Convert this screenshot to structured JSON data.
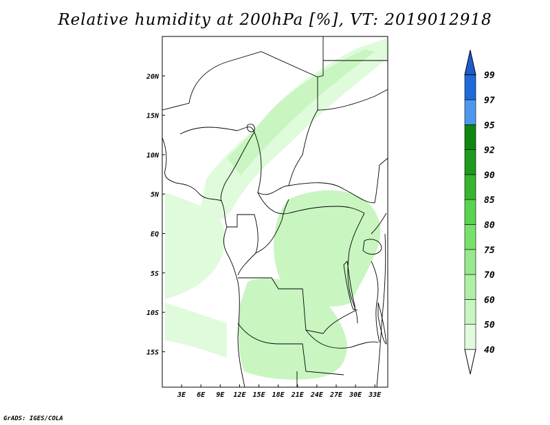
{
  "title": "Relative humidity at 200hPa [%], VT: 2019012918",
  "credit": "GrADS: IGES/COLA",
  "map": {
    "lon_range": [
      0,
      35
    ],
    "lat_range": [
      -19.5,
      25
    ],
    "projection": "lat-lon",
    "x_ticks": [
      {
        "value": 3,
        "label": "3E"
      },
      {
        "value": 6,
        "label": "6E"
      },
      {
        "value": 9,
        "label": "9E"
      },
      {
        "value": 12,
        "label": "12E"
      },
      {
        "value": 15,
        "label": "15E"
      },
      {
        "value": 18,
        "label": "18E"
      },
      {
        "value": 21,
        "label": "21E"
      },
      {
        "value": 24,
        "label": "24E"
      },
      {
        "value": 27,
        "label": "27E"
      },
      {
        "value": 30,
        "label": "30E"
      },
      {
        "value": 33,
        "label": "33E"
      }
    ],
    "y_ticks": [
      {
        "value": 20,
        "label": "20N"
      },
      {
        "value": 15,
        "label": "15N"
      },
      {
        "value": 10,
        "label": "10N"
      },
      {
        "value": 5,
        "label": "5N"
      },
      {
        "value": 0,
        "label": "EQ"
      },
      {
        "value": -5,
        "label": "5S"
      },
      {
        "value": -10,
        "label": "10S"
      },
      {
        "value": -15,
        "label": "15S"
      }
    ]
  },
  "colorbar": {
    "levels": [
      {
        "label": "40",
        "color": "#f0fff0"
      },
      {
        "label": "50",
        "color": "#e0fbdc"
      },
      {
        "label": "60",
        "color": "#c8f5c0"
      },
      {
        "label": "70",
        "color": "#b0efa6"
      },
      {
        "label": "75",
        "color": "#96e98c"
      },
      {
        "label": "80",
        "color": "#78e16c"
      },
      {
        "label": "85",
        "color": "#5ad44e"
      },
      {
        "label": "90",
        "color": "#36b530"
      },
      {
        "label": "92",
        "color": "#1e9a1c"
      },
      {
        "label": "95",
        "color": "#0f870f"
      },
      {
        "label": "97",
        "color": "#4f97ec"
      },
      {
        "label": "99",
        "color": "#1e6ad8"
      }
    ],
    "top_color": "#1e5ccc",
    "bottom_color": "#ffffff"
  },
  "humidity_regions": [
    {
      "name": "sahel-jet-band",
      "level": "50"
    },
    {
      "name": "central-africa-patch",
      "level": "60"
    },
    {
      "name": "angola-zambia-patch",
      "level": "60"
    },
    {
      "name": "gulf-of-guinea-patch",
      "level": "50"
    }
  ]
}
